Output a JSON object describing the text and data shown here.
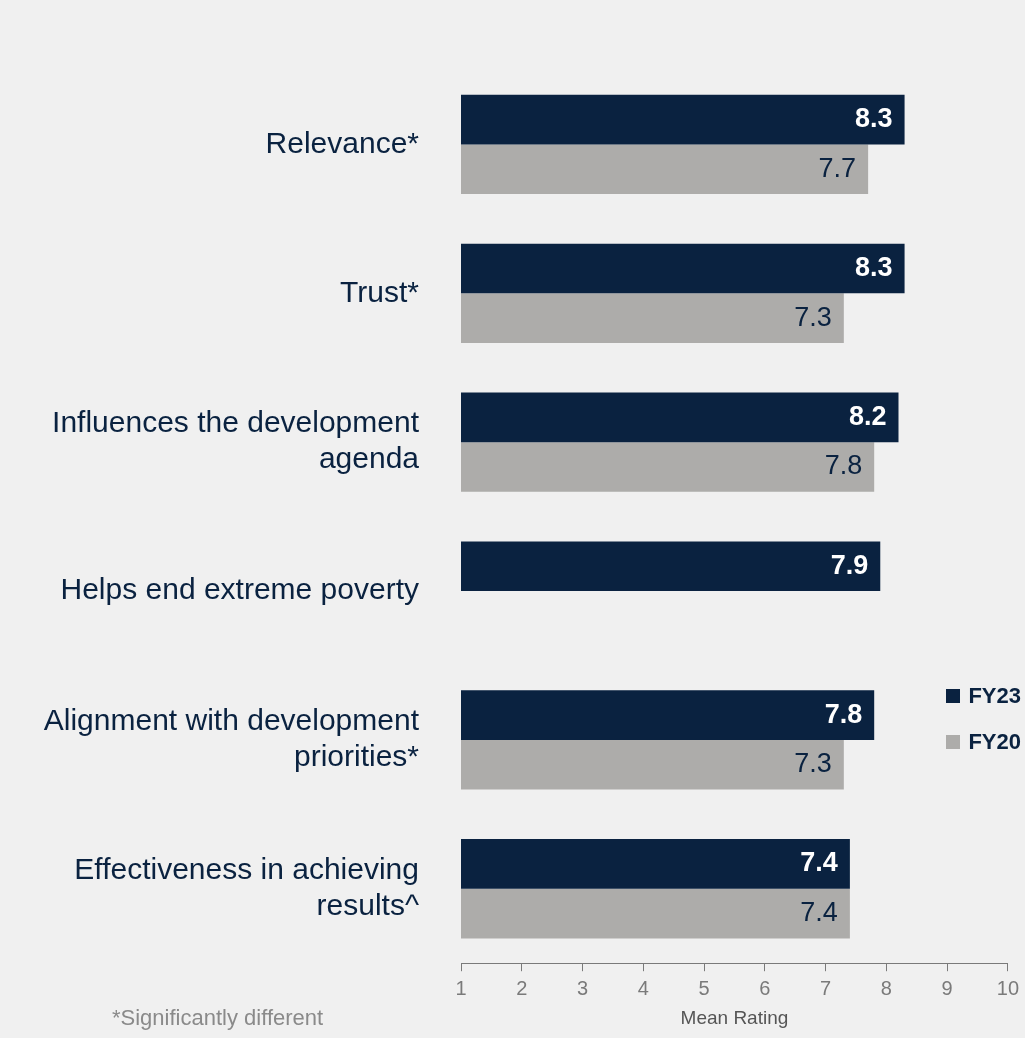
{
  "chart_data": {
    "type": "bar",
    "orientation": "horizontal",
    "xlabel": "Mean Rating",
    "categories": [
      "Relevance*",
      "Trust*",
      "Influences the development agenda",
      "Helps end extreme poverty",
      "Alignment with development priorities*",
      "Effectiveness in achieving results^"
    ],
    "series": [
      {
        "name": "FY23",
        "color": "#0a2240",
        "values": [
          8.3,
          8.3,
          8.2,
          7.9,
          7.8,
          7.4
        ]
      },
      {
        "name": "FY20",
        "color": "#adacaa",
        "values": [
          7.7,
          7.3,
          7.8,
          null,
          7.3,
          7.4
        ]
      }
    ],
    "xlim": [
      1,
      10
    ],
    "xticks": [
      1,
      2,
      3,
      4,
      5,
      6,
      7,
      8,
      9,
      10
    ],
    "grid": false,
    "legend": "right",
    "data_labels": true,
    "annotations": [
      "*Significantly different"
    ]
  }
}
